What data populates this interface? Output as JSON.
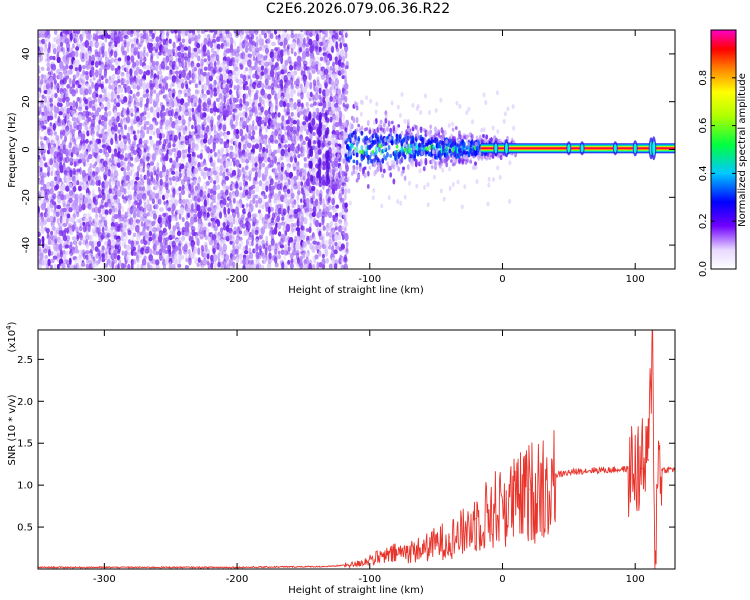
{
  "title": "C2E6.2026.079.06.36.R22",
  "chart_data": [
    {
      "type": "heatmap",
      "xlabel": "Height of straight line (km)",
      "ylabel": "Frequency (Hz)",
      "xlim": [
        -350,
        130
      ],
      "ylim": [
        -50,
        50
      ],
      "xticks": [
        -300,
        -200,
        -100,
        0,
        100
      ],
      "yticks": [
        -40,
        -20,
        0,
        20,
        40
      ],
      "colorbar": {
        "label": "Normalized spectral amplitude",
        "range": [
          0,
          1
        ],
        "ticks": [
          "0.0",
          "0.2",
          "0.4",
          "0.6",
          "0.8"
        ],
        "colormap": [
          "#ffffff",
          "#7000ff",
          "#0000ff",
          "#00ffff",
          "#00ff00",
          "#ffff00",
          "#ff8000",
          "#ff0000",
          "#ff00c0"
        ]
      },
      "features": {
        "noise_region_x": [
          -350,
          -118
        ],
        "transition_region_x": [
          -118,
          10
        ],
        "tone_line_x": [
          10,
          130
        ],
        "tone_frequency_hz": 0.5
      }
    },
    {
      "type": "line",
      "xlabel": "Height of straight line (km)",
      "ylabel": "SNR (10 * v/v)",
      "y_multiplier": "(x10",
      "y_multiplier_exp": "4",
      "xlim": [
        -350,
        130
      ],
      "ylim": [
        0,
        2.85
      ],
      "xticks": [
        -300,
        -200,
        -100,
        0,
        100
      ],
      "yticks": [
        "0.5",
        "1.0",
        "1.5",
        "2.0",
        "2.5"
      ],
      "series": [
        {
          "color": "#e8332b",
          "x": [
            -350,
            -200,
            -130,
            -110,
            -100,
            -90,
            -80,
            -70,
            -60,
            -50,
            -40,
            -30,
            -20,
            -10,
            0,
            10,
            20,
            30,
            40,
            50,
            60,
            70,
            80,
            90,
            100,
            105,
            110,
            113,
            115,
            118,
            120,
            130
          ],
          "y": [
            0.02,
            0.02,
            0.03,
            0.06,
            0.12,
            0.15,
            0.2,
            0.22,
            0.25,
            0.32,
            0.38,
            0.45,
            0.6,
            0.7,
            0.8,
            0.85,
            0.95,
            1.05,
            1.12,
            1.15,
            1.17,
            1.18,
            1.18,
            1.19,
            1.19,
            1.2,
            1.3,
            2.8,
            0.1,
            1.5,
            1.18,
            1.19
          ]
        }
      ]
    }
  ]
}
